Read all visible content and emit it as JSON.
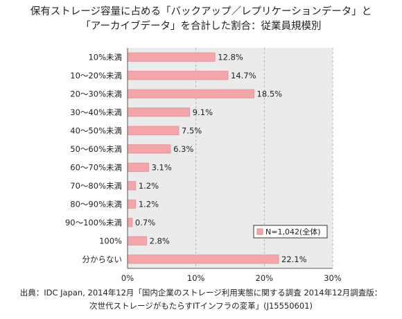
{
  "chart_data": {
    "type": "bar",
    "orientation": "horizontal",
    "title_line1": "保有ストレージ容量に占める「バックアップ／レプリケーションデータ」と",
    "title_line2": "「アーカイブデータ」を合計した割合：従業員規模別",
    "categories": [
      "10%未満",
      "10～20%未満",
      "20～30%未満",
      "30～40%未満",
      "40～50%未満",
      "50～60%未満",
      "60～70%未満",
      "70～80%未満",
      "80～90%未満",
      "90～100%未満",
      "100%",
      "分からない"
    ],
    "series": [
      {
        "name": "N=1,042(全体)",
        "values": [
          12.8,
          14.7,
          18.5,
          9.1,
          7.5,
          6.3,
          3.1,
          1.2,
          1.2,
          0.7,
          2.8,
          22.1
        ],
        "value_labels": [
          "12.8%",
          "14.7%",
          "18.5%",
          "9.1%",
          "7.5%",
          "6.3%",
          "3.1%",
          "1.2%",
          "1.2%",
          "0.7%",
          "2.8%",
          "22.1%"
        ]
      }
    ],
    "xlim": [
      0,
      30
    ],
    "xticks": [
      0,
      10,
      20,
      30
    ],
    "xtick_labels": [
      "0%",
      "10%",
      "20%",
      "30%"
    ],
    "grid": "vertical dashed",
    "legend": "bottom-right",
    "colors": {
      "bar_fill": "#f4a5aa",
      "bar_stroke": "#d98a90",
      "plot_bg": "#ebebeb",
      "grid": "#b0b0b0",
      "axis": "#555555"
    }
  },
  "source": {
    "line1": "出典：IDC Japan, 2014年12月「国内企業のストレージ利用実態に関する調査 2014年12月調査版：",
    "line2": "次世代ストレージがもたらすITインフラの変革」(J15550601)"
  }
}
